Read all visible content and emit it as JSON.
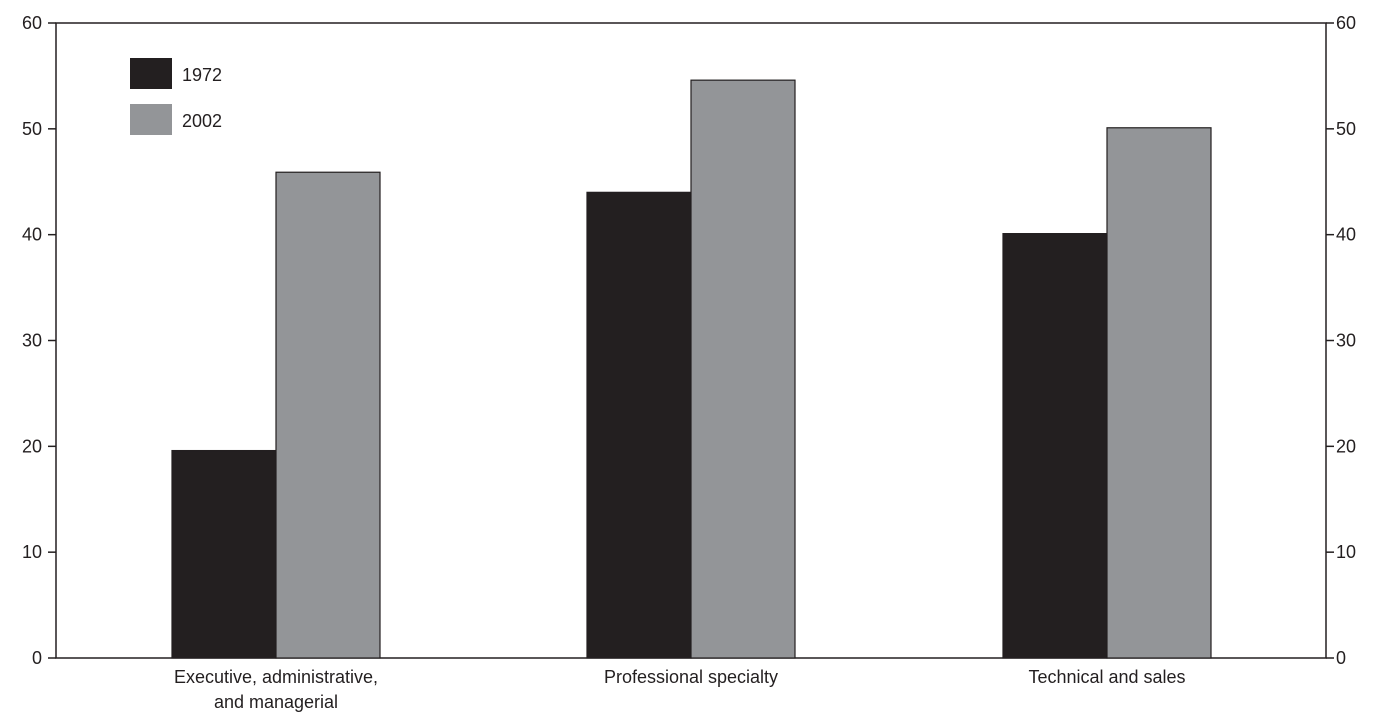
{
  "chart_data": {
    "type": "bar",
    "title": "",
    "xlabel": "",
    "ylabel": "",
    "ylim": [
      0,
      60
    ],
    "yticks": [
      0,
      10,
      20,
      30,
      40,
      50,
      60
    ],
    "categories": [
      [
        "Executive, administrative,",
        "and managerial"
      ],
      [
        "Professional specialty"
      ],
      [
        "Technical and sales"
      ]
    ],
    "series": [
      {
        "name": "1972",
        "color": "#231f20",
        "values": [
          19.6,
          44.0,
          40.1
        ]
      },
      {
        "name": "2002",
        "color": "#939598",
        "values": [
          45.9,
          54.6,
          50.1
        ]
      }
    ],
    "legend_position": "top-left",
    "secondary_y_axis": true,
    "grid": false
  }
}
